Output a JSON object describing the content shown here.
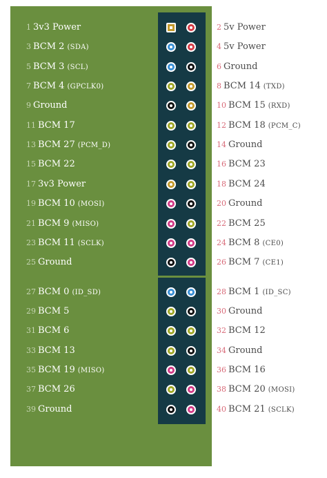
{
  "colors": {
    "power_3v3": "#c49a2c",
    "power_5v": "#d63a44",
    "ground": "#111111",
    "gpio": "#9fa625",
    "i2c": "#3a8fd4",
    "spi": "#d23b87",
    "uart": "#c49a2c"
  },
  "pins": [
    {
      "num": "1",
      "name": "3v3 Power",
      "extra": "",
      "type": "power_3v3",
      "square": true
    },
    {
      "num": "2",
      "name": "5v Power",
      "extra": "",
      "type": "power_5v"
    },
    {
      "num": "3",
      "name": "BCM 2",
      "extra": "(SDA)",
      "type": "i2c"
    },
    {
      "num": "4",
      "name": "5v Power",
      "extra": "",
      "type": "power_5v"
    },
    {
      "num": "5",
      "name": "BCM 3",
      "extra": "(SCL)",
      "type": "i2c"
    },
    {
      "num": "6",
      "name": "Ground",
      "extra": "",
      "type": "ground"
    },
    {
      "num": "7",
      "name": "BCM 4",
      "extra": "(GPCLK0)",
      "type": "gpio"
    },
    {
      "num": "8",
      "name": "BCM 14",
      "extra": "(TXD)",
      "type": "uart"
    },
    {
      "num": "9",
      "name": "Ground",
      "extra": "",
      "type": "ground"
    },
    {
      "num": "10",
      "name": "BCM 15",
      "extra": "(RXD)",
      "type": "uart"
    },
    {
      "num": "11",
      "name": "BCM 17",
      "extra": "",
      "type": "gpio"
    },
    {
      "num": "12",
      "name": "BCM 18",
      "extra": "(PCM_C)",
      "type": "gpio"
    },
    {
      "num": "13",
      "name": "BCM 27",
      "extra": "(PCM_D)",
      "type": "gpio"
    },
    {
      "num": "14",
      "name": "Ground",
      "extra": "",
      "type": "ground"
    },
    {
      "num": "15",
      "name": "BCM 22",
      "extra": "",
      "type": "gpio"
    },
    {
      "num": "16",
      "name": "BCM 23",
      "extra": "",
      "type": "gpio"
    },
    {
      "num": "17",
      "name": "3v3 Power",
      "extra": "",
      "type": "power_3v3"
    },
    {
      "num": "18",
      "name": "BCM 24",
      "extra": "",
      "type": "gpio"
    },
    {
      "num": "19",
      "name": "BCM 10",
      "extra": "(MOSI)",
      "type": "spi"
    },
    {
      "num": "20",
      "name": "Ground",
      "extra": "",
      "type": "ground"
    },
    {
      "num": "21",
      "name": "BCM 9",
      "extra": "(MISO)",
      "type": "spi"
    },
    {
      "num": "22",
      "name": "BCM 25",
      "extra": "",
      "type": "gpio"
    },
    {
      "num": "23",
      "name": "BCM 11",
      "extra": "(SCLK)",
      "type": "spi"
    },
    {
      "num": "24",
      "name": "BCM 8",
      "extra": "(CE0)",
      "type": "spi"
    },
    {
      "num": "25",
      "name": "Ground",
      "extra": "",
      "type": "ground"
    },
    {
      "num": "26",
      "name": "BCM 7",
      "extra": "(CE1)",
      "type": "spi"
    },
    {
      "num": "27",
      "name": "BCM 0",
      "extra": "(ID_SD)",
      "type": "i2c"
    },
    {
      "num": "28",
      "name": "BCM 1",
      "extra": "(ID_SC)",
      "type": "i2c"
    },
    {
      "num": "29",
      "name": "BCM 5",
      "extra": "",
      "type": "gpio"
    },
    {
      "num": "30",
      "name": "Ground",
      "extra": "",
      "type": "ground"
    },
    {
      "num": "31",
      "name": "BCM 6",
      "extra": "",
      "type": "gpio"
    },
    {
      "num": "32",
      "name": "BCM 12",
      "extra": "",
      "type": "gpio"
    },
    {
      "num": "33",
      "name": "BCM 13",
      "extra": "",
      "type": "gpio"
    },
    {
      "num": "34",
      "name": "Ground",
      "extra": "",
      "type": "ground"
    },
    {
      "num": "35",
      "name": "BCM 19",
      "extra": "(MISO)",
      "type": "spi"
    },
    {
      "num": "36",
      "name": "BCM 16",
      "extra": "",
      "type": "gpio"
    },
    {
      "num": "37",
      "name": "BCM 26",
      "extra": "",
      "type": "gpio"
    },
    {
      "num": "38",
      "name": "BCM 20",
      "extra": "(MOSI)",
      "type": "spi"
    },
    {
      "num": "39",
      "name": "Ground",
      "extra": "",
      "type": "ground"
    },
    {
      "num": "40",
      "name": "BCM 21",
      "extra": "(SCLK)",
      "type": "spi"
    }
  ]
}
